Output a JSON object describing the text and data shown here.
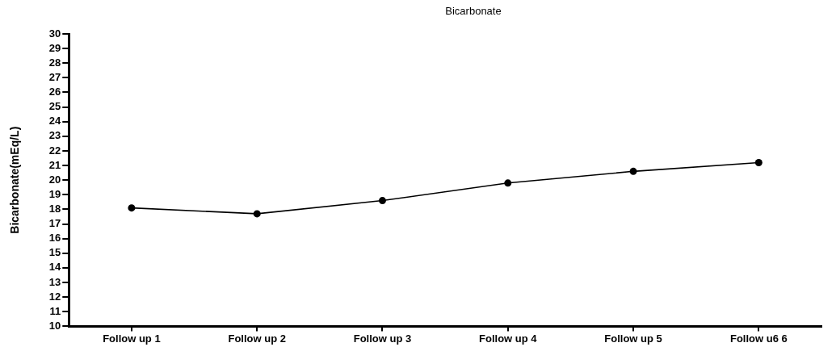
{
  "chart_data": {
    "type": "line",
    "title": "Bicarbonate",
    "ylabel": "Bicarbonate(mEq/L)",
    "categories": [
      "Follow up 1",
      "Follow up 2",
      "Follow up 3",
      "Follow up 4",
      "Follow up 5",
      "Follow u6 6"
    ],
    "series": [
      {
        "color": "#000000",
        "values": [
          18.1,
          17.7,
          18.6,
          19.8,
          20.6,
          21.2
        ]
      }
    ],
    "ylim": [
      10,
      30
    ],
    "yticks": [
      10,
      11,
      12,
      13,
      14,
      15,
      16,
      17,
      18,
      19,
      20,
      21,
      22,
      23,
      24,
      25,
      26,
      27,
      28,
      29,
      30
    ],
    "marker": "circle"
  }
}
